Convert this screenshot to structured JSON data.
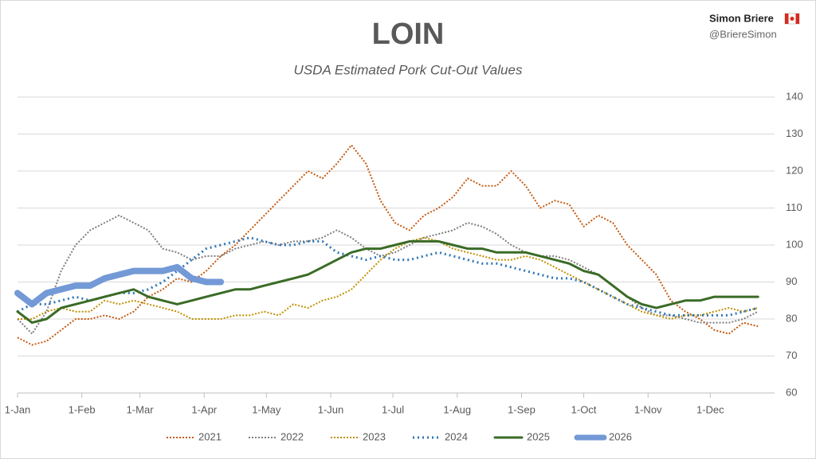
{
  "chart_data": {
    "type": "line",
    "title": "LOIN",
    "subtitle": "USDA Estimated Pork Cut-Out Values",
    "author": "Simon Briere",
    "handle": "@BriereSimon",
    "x": [
      0,
      7,
      14,
      21,
      28,
      35,
      42,
      49,
      56,
      63,
      70,
      77,
      84,
      91,
      98,
      105,
      112,
      119,
      126,
      133,
      140,
      147,
      154,
      161,
      168,
      175,
      182,
      189,
      196,
      203,
      210,
      217,
      224,
      231,
      238,
      245,
      252,
      259,
      266,
      273,
      280,
      287,
      294,
      301,
      308,
      315,
      322,
      329,
      336,
      343,
      350,
      357
    ],
    "xlim": [
      0,
      365
    ],
    "xticks": [
      {
        "value": 0,
        "label": "1-Jan"
      },
      {
        "value": 31,
        "label": "1-Feb"
      },
      {
        "value": 59,
        "label": "1-Mar"
      },
      {
        "value": 90,
        "label": "1-Apr"
      },
      {
        "value": 120,
        "label": "1-May"
      },
      {
        "value": 151,
        "label": "1-Jun"
      },
      {
        "value": 181,
        "label": "1-Jul"
      },
      {
        "value": 212,
        "label": "1-Aug"
      },
      {
        "value": 243,
        "label": "1-Sep"
      },
      {
        "value": 273,
        "label": "1-Oct"
      },
      {
        "value": 304,
        "label": "1-Nov"
      },
      {
        "value": 334,
        "label": "1-Dec"
      }
    ],
    "ylim": [
      60,
      140
    ],
    "yticks": [
      60,
      70,
      80,
      90,
      100,
      110,
      120,
      130,
      140
    ],
    "grid": true,
    "legend": "bottom",
    "series": [
      {
        "name": "2021",
        "color": "#c55a11",
        "style": "dotted",
        "width": 2,
        "values": [
          75,
          73,
          74,
          77,
          80,
          80,
          81,
          80,
          82,
          86,
          88,
          91,
          90,
          93,
          97,
          100,
          104,
          108,
          112,
          116,
          120,
          118,
          122,
          127,
          122,
          112,
          106,
          104,
          108,
          110,
          113,
          118,
          116,
          116,
          120,
          116,
          110,
          112,
          111,
          105,
          108,
          106,
          100,
          96,
          92,
          85,
          82,
          80,
          77,
          76,
          79,
          78
        ]
      },
      {
        "name": "2022",
        "color": "#7f7f7f",
        "style": "dotted",
        "width": 2,
        "values": [
          80,
          76,
          82,
          93,
          100,
          104,
          106,
          108,
          106,
          104,
          99,
          98,
          96,
          97,
          97,
          99,
          100,
          101,
          100,
          101,
          101,
          102,
          104,
          102,
          99,
          97,
          98,
          100,
          102,
          103,
          104,
          106,
          105,
          103,
          100,
          98,
          97,
          97,
          96,
          94,
          92,
          89,
          86,
          83,
          81,
          81,
          80,
          79,
          79,
          79,
          80,
          82
        ]
      },
      {
        "name": "2023",
        "color": "#bf9000",
        "style": "dotted",
        "width": 2,
        "values": [
          80,
          80,
          82,
          83,
          82,
          82,
          85,
          84,
          85,
          84,
          83,
          82,
          80,
          80,
          80,
          81,
          81,
          82,
          81,
          84,
          83,
          85,
          86,
          88,
          92,
          96,
          99,
          101,
          102,
          101,
          99,
          98,
          97,
          96,
          96,
          97,
          96,
          94,
          92,
          90,
          88,
          86,
          84,
          82,
          81,
          80,
          81,
          81,
          82,
          83,
          82,
          83
        ]
      },
      {
        "name": "2024",
        "color": "#2e75b6",
        "style": "dotted",
        "width": 3,
        "values": [
          82,
          84,
          84,
          85,
          86,
          85,
          86,
          87,
          87,
          88,
          90,
          93,
          96,
          99,
          100,
          101,
          102,
          101,
          100,
          100,
          101,
          101,
          98,
          97,
          96,
          97,
          96,
          96,
          97,
          98,
          97,
          96,
          95,
          95,
          94,
          93,
          92,
          91,
          91,
          90,
          88,
          86,
          84,
          83,
          82,
          81,
          81,
          81,
          81,
          81,
          82,
          83
        ]
      },
      {
        "name": "2025",
        "color": "#3a6b26",
        "style": "solid",
        "width": 3,
        "values": [
          82,
          79,
          80,
          83,
          84,
          85,
          86,
          87,
          88,
          86,
          85,
          84,
          85,
          86,
          87,
          88,
          88,
          89,
          90,
          91,
          92,
          94,
          96,
          98,
          99,
          99,
          100,
          101,
          101,
          101,
          100,
          99,
          99,
          98,
          98,
          98,
          97,
          96,
          95,
          93,
          92,
          89,
          86,
          84,
          83,
          84,
          85,
          85,
          86,
          86,
          86,
          86
        ]
      },
      {
        "name": "2026",
        "color": "#7399d6",
        "style": "solid",
        "width": 8,
        "values": [
          87,
          84,
          87,
          88,
          89,
          89,
          91,
          92,
          93,
          93,
          93,
          94,
          91,
          90,
          90,
          null,
          null,
          null,
          null,
          null,
          null,
          null,
          null,
          null,
          null,
          null,
          null,
          null,
          null,
          null,
          null,
          null,
          null,
          null,
          null,
          null,
          null,
          null,
          null,
          null,
          null,
          null,
          null,
          null,
          null,
          null,
          null,
          null,
          null,
          null,
          null,
          null
        ]
      }
    ]
  }
}
